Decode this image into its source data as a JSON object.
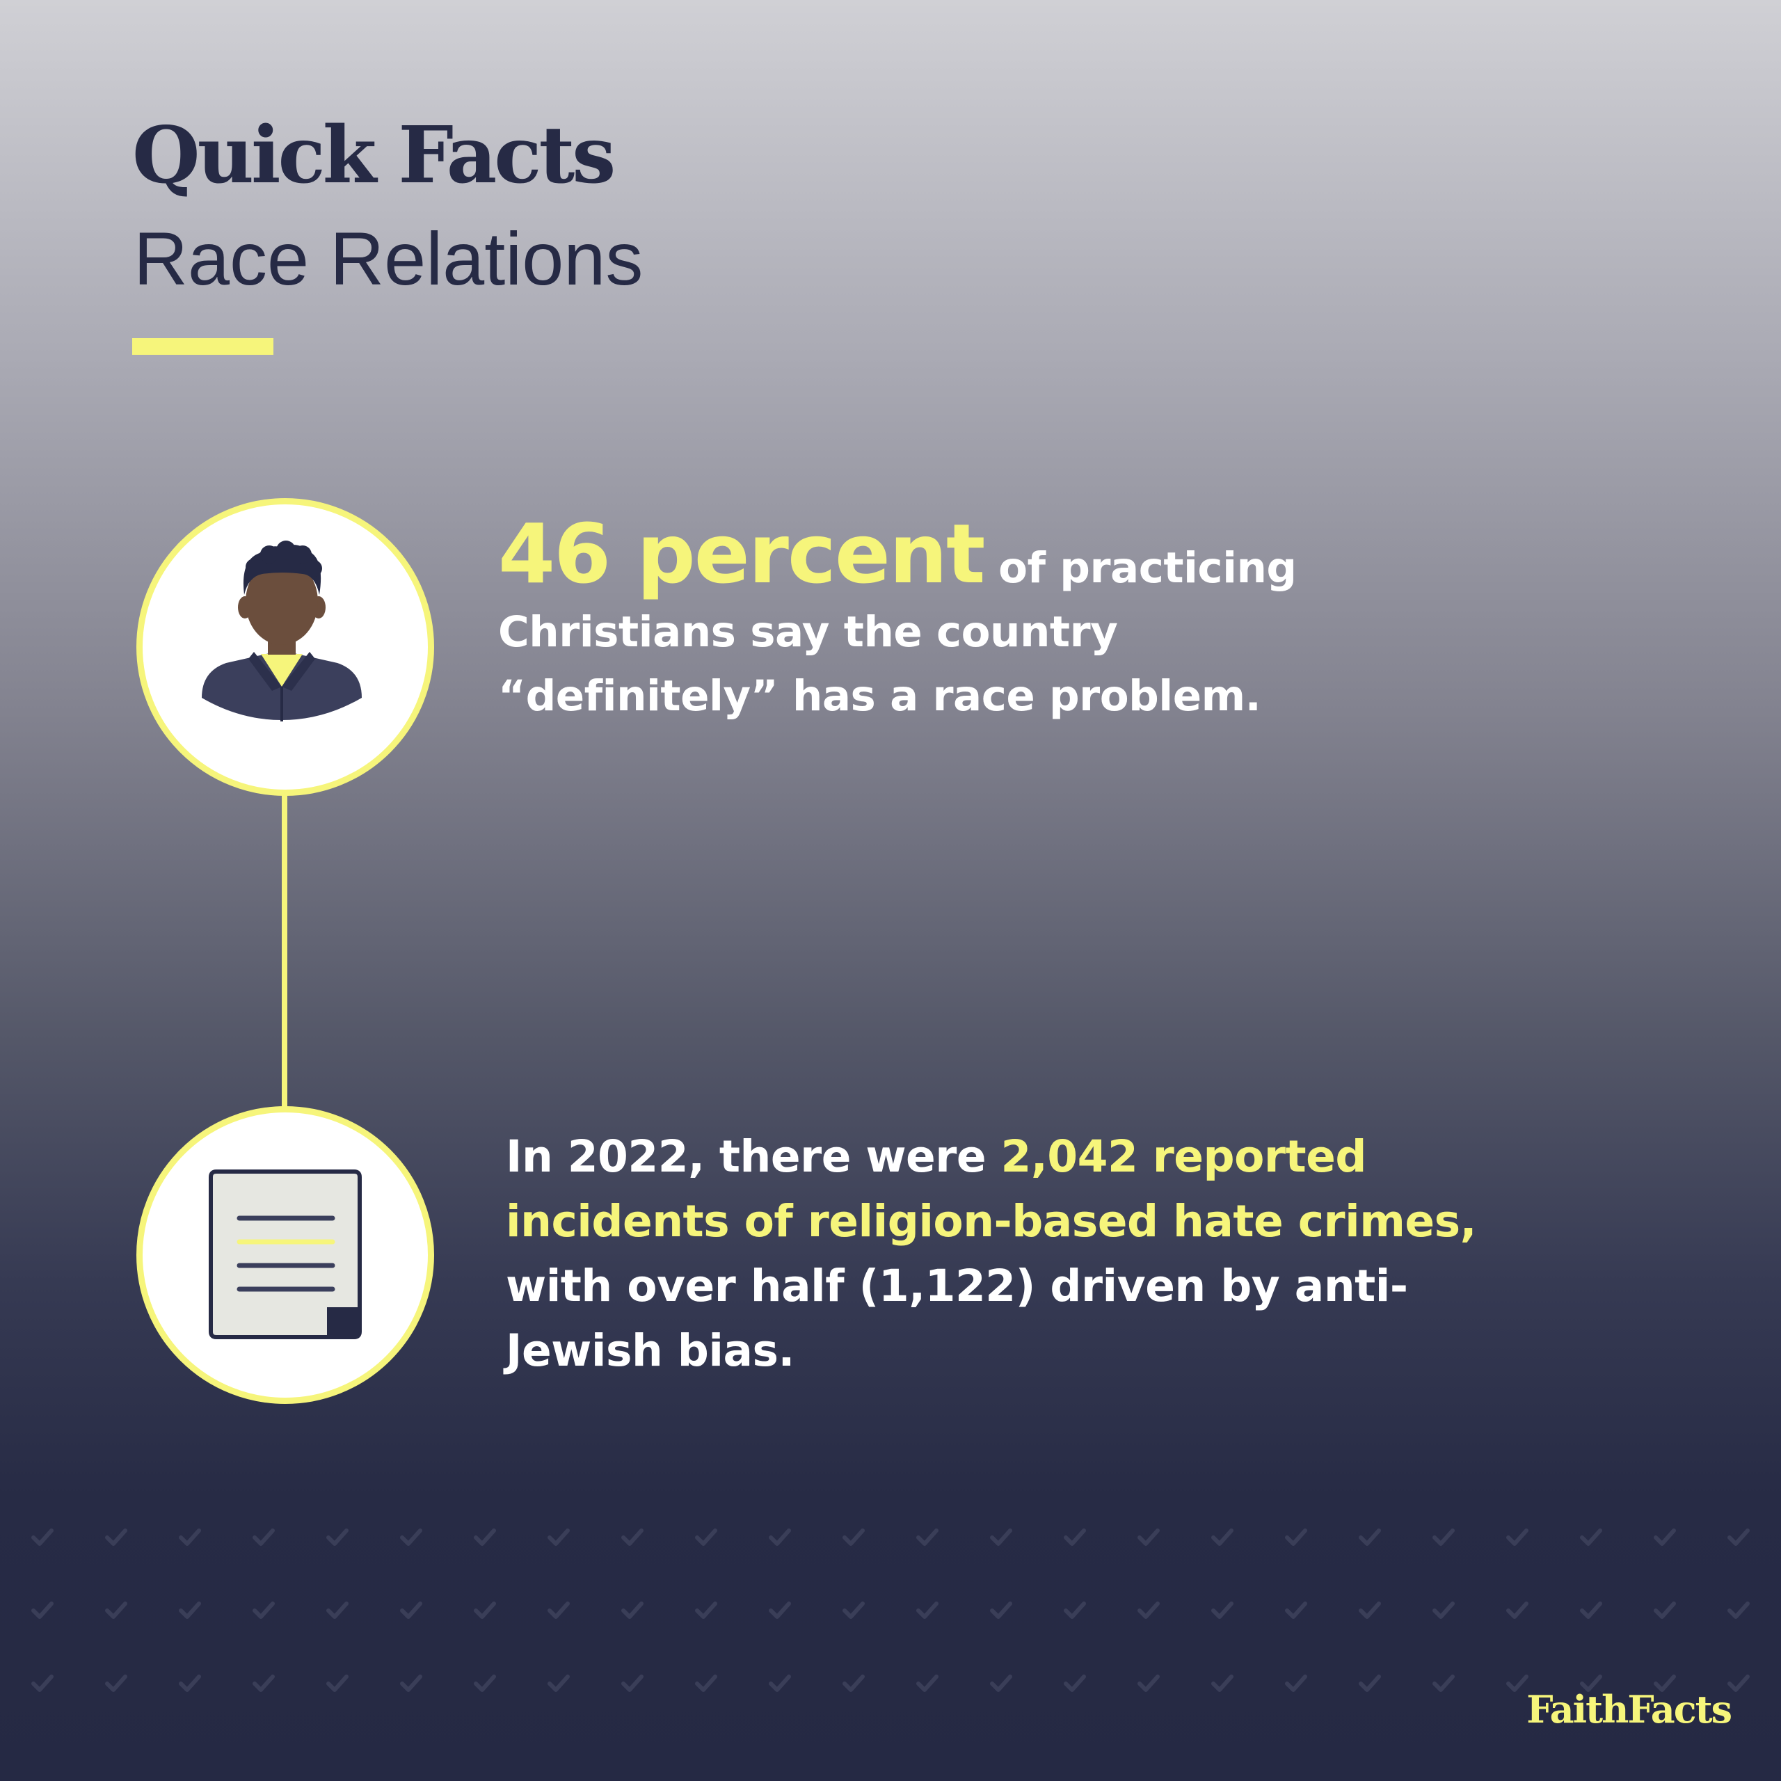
{
  "header": {
    "title": "Quick Facts",
    "subtitle": "Race Relations"
  },
  "facts": [
    {
      "icon": "person-avatar-icon",
      "highlight": "46 percent",
      "text_1": " of practicing Christians say the country “definitely” has a race problem."
    },
    {
      "icon": "document-icon",
      "text_before": "In 2022, there were ",
      "highlight": "2,042 reported incidents of religion-based hate crimes,",
      "text_after": " with over half (1,122) driven by anti-Jewish bias."
    }
  ],
  "logo": {
    "text": "FaithFacts"
  },
  "colors": {
    "accent": "#f6f57b",
    "navy": "#262a45",
    "background_bottom": "#252944",
    "background_top": "#d0d0d5"
  }
}
